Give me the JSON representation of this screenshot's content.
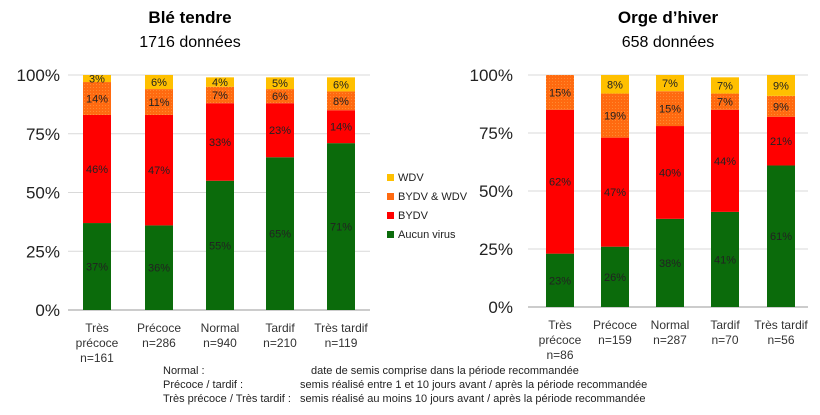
{
  "chart_data": [
    {
      "type": "bar",
      "stacked": true,
      "title": "Blé tendre",
      "subtitle": "1716 données",
      "categories": [
        [
          "Très",
          "précoce",
          "n=161"
        ],
        [
          "Précoce",
          "n=286"
        ],
        [
          "Normal",
          "n=940"
        ],
        [
          "Tardif",
          "n=210"
        ],
        [
          "Très tardif",
          "n=119"
        ]
      ],
      "ylim": [
        0,
        100
      ],
      "yticks": [
        "0%",
        "25%",
        "50%",
        "75%",
        "100%"
      ],
      "grid": true,
      "series": [
        {
          "name": "Aucun virus",
          "color": "#0b6b0b",
          "values": [
            37,
            36,
            55,
            65,
            71
          ]
        },
        {
          "name": "BYDV",
          "color": "#ff0000",
          "values": [
            46,
            47,
            33,
            23,
            14
          ]
        },
        {
          "name": "BYDV & WDV",
          "color": "#ff6a10",
          "values": [
            14,
            11,
            7,
            6,
            8
          ]
        },
        {
          "name": "WDV",
          "color": "#ffc000",
          "values": [
            3,
            6,
            4,
            5,
            6
          ]
        }
      ]
    },
    {
      "type": "bar",
      "stacked": true,
      "title": "Orge d’hiver",
      "subtitle": "658 données",
      "categories": [
        [
          "Très",
          "précoce",
          "n=86"
        ],
        [
          "Précoce",
          "n=159"
        ],
        [
          "Normal",
          "n=287"
        ],
        [
          "Tardif",
          "n=70"
        ],
        [
          "Très tardif",
          "n=56"
        ]
      ],
      "ylim": [
        0,
        100
      ],
      "yticks": [
        "0%",
        "25%",
        "50%",
        "75%",
        "100%"
      ],
      "grid": true,
      "series": [
        {
          "name": "Aucun virus",
          "color": "#0b6b0b",
          "values": [
            23,
            26,
            38,
            41,
            61
          ]
        },
        {
          "name": "BYDV",
          "color": "#ff0000",
          "values": [
            62,
            47,
            40,
            44,
            21
          ]
        },
        {
          "name": "BYDV & WDV",
          "color": "#ff6a10",
          "values": [
            15,
            19,
            15,
            7,
            9
          ]
        },
        {
          "name": "WDV",
          "color": "#ffc000",
          "values": [
            0,
            8,
            7,
            7,
            9
          ]
        }
      ]
    }
  ],
  "legend": {
    "placement": "between charts",
    "items": [
      "WDV",
      "BYDV & WDV",
      "BYDV",
      "Aucun virus"
    ]
  },
  "notes": [
    {
      "term": "Normal :",
      "desc": "date de semis comprise dans la période recommandée"
    },
    {
      "term": "Précoce / tardif :",
      "desc": "semis réalisé entre 1 et 10 jours avant / après la période recommandée"
    },
    {
      "term": "Très précoce / Très tardif :",
      "desc": "semis réalisé au moins 10 jours avant / après la période recommandée"
    }
  ]
}
